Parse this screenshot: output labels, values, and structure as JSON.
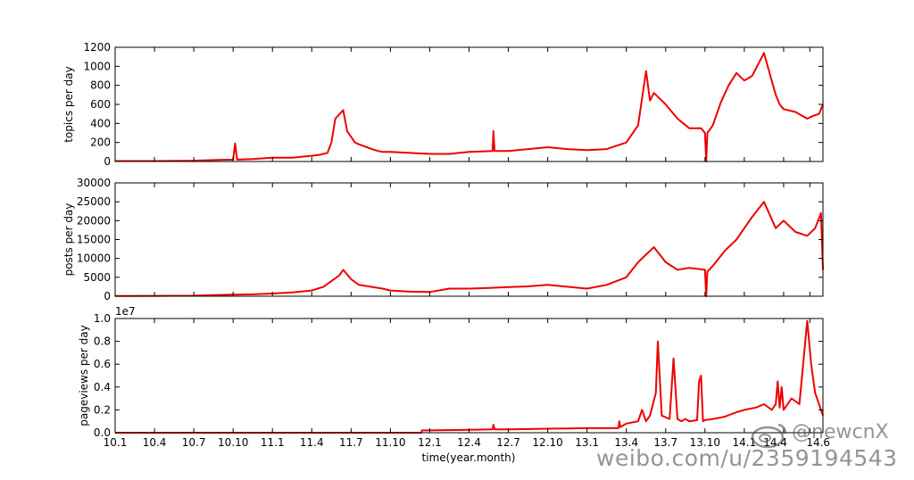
{
  "figure": {
    "xlabel": "time(year.month)",
    "x_ticks": [
      "10.1",
      "10.4",
      "10.7",
      "10.10",
      "11.1",
      "11.4",
      "11.7",
      "11.10",
      "12.1",
      "12.4",
      "12.7",
      "12.10",
      "13.1",
      "13.4",
      "13.7",
      "13.10",
      "14.1",
      "14.4",
      "14.6"
    ],
    "line_color": "#ee0000"
  },
  "watermark": {
    "handle": "@newcnX",
    "url": "weibo.com/u/2359194543",
    "logo_icon": "weibo-logo-icon"
  },
  "chart_data": [
    {
      "type": "line",
      "title": "",
      "ylabel": "topics per day",
      "ylim": [
        0,
        1200
      ],
      "yticks": [
        "0",
        "200",
        "400",
        "600",
        "800",
        "1000",
        "1200"
      ],
      "grid": false,
      "series": [
        {
          "x": [
            0,
            1.0,
            2.0,
            2.5,
            3.0,
            3.05,
            3.1,
            3.5,
            4.0,
            4.5,
            5.0,
            5.2,
            5.4,
            5.5,
            5.6,
            5.8,
            5.9,
            6.1,
            6.2,
            6.4,
            6.6,
            6.8,
            7.0,
            7.5,
            8.0,
            8.5,
            9.0,
            9.6,
            9.62,
            9.65,
            10.0,
            10.5,
            11.0,
            11.5,
            12.0,
            12.5,
            13.0,
            13.3,
            13.5,
            13.6,
            13.7,
            14.0,
            14.3,
            14.6,
            14.9,
            15.0,
            15.03,
            15.06,
            15.2,
            15.4,
            15.6,
            15.8,
            16.0,
            16.2,
            16.5,
            16.8,
            16.9,
            17.0,
            17.3,
            17.6,
            17.75,
            17.9,
            18.0
          ],
          "y": [
            5,
            5,
            8,
            15,
            20,
            190,
            20,
            25,
            40,
            40,
            60,
            70,
            90,
            200,
            450,
            540,
            320,
            200,
            180,
            150,
            120,
            100,
            100,
            90,
            80,
            80,
            100,
            110,
            320,
            110,
            110,
            130,
            150,
            130,
            120,
            130,
            200,
            380,
            950,
            640,
            720,
            600,
            450,
            350,
            350,
            300,
            0,
            300,
            380,
            620,
            800,
            930,
            850,
            900,
            1140,
            700,
            600,
            550,
            520,
            450,
            480,
            500,
            600
          ]
        }
      ]
    },
    {
      "type": "line",
      "title": "",
      "ylabel": "posts per day",
      "ylim": [
        0,
        30000
      ],
      "yticks": [
        "0",
        "5000",
        "10000",
        "15000",
        "20000",
        "25000",
        "30000"
      ],
      "grid": false,
      "series": [
        {
          "x": [
            0,
            1.0,
            2.0,
            2.5,
            3.0,
            3.5,
            4.0,
            4.5,
            5.0,
            5.3,
            5.5,
            5.7,
            5.8,
            6.0,
            6.2,
            6.5,
            6.8,
            7.0,
            7.5,
            8.0,
            8.5,
            9.0,
            9.5,
            10.0,
            10.5,
            11.0,
            11.5,
            12.0,
            12.5,
            13.0,
            13.3,
            13.5,
            13.7,
            14.0,
            14.3,
            14.6,
            15.0,
            15.03,
            15.06,
            15.2,
            15.5,
            15.8,
            16.0,
            16.2,
            16.5,
            16.8,
            17.0,
            17.3,
            17.6,
            17.8,
            17.95,
            18.0
          ],
          "y": [
            50,
            100,
            150,
            300,
            400,
            500,
            700,
            1000,
            1500,
            2500,
            4000,
            5500,
            7000,
            4500,
            3000,
            2500,
            2000,
            1500,
            1200,
            1100,
            2000,
            2000,
            2200,
            2400,
            2600,
            3000,
            2500,
            2000,
            3000,
            5000,
            9000,
            11000,
            13000,
            9000,
            7000,
            7500,
            7000,
            0,
            6500,
            8000,
            12000,
            15000,
            18000,
            21000,
            25000,
            18000,
            20000,
            17000,
            16000,
            18000,
            22000,
            7000
          ]
        }
      ]
    },
    {
      "type": "line",
      "title": "",
      "ylabel": "pageviews per day",
      "ylim": [
        0,
        10000000
      ],
      "yticks": [
        "0.0",
        "0.2",
        "0.4",
        "0.6",
        "0.8",
        "1.0"
      ],
      "scale_label": "1e7",
      "grid": false,
      "series": [
        {
          "x": [
            0,
            2.0,
            4.0,
            6.0,
            7.79,
            7.8,
            8.0,
            9.0,
            9.6,
            9.62,
            9.65,
            10.0,
            11.0,
            12.0,
            12.8,
            12.82,
            12.85,
            13.0,
            13.3,
            13.4,
            13.5,
            13.6,
            13.75,
            13.8,
            13.9,
            14.1,
            14.2,
            14.3,
            14.4,
            14.5,
            14.6,
            14.8,
            14.85,
            14.9,
            14.95,
            15.0,
            15.2,
            15.5,
            15.8,
            16.0,
            16.3,
            16.5,
            16.7,
            16.8,
            16.85,
            16.9,
            16.95,
            17.0,
            17.2,
            17.4,
            17.6,
            17.7,
            17.8,
            17.9,
            18.0
          ],
          "y": [
            0,
            0,
            0,
            0,
            0,
            200000,
            200000,
            250000,
            300000,
            700000,
            300000,
            300000,
            350000,
            400000,
            400000,
            1000000,
            500000,
            800000,
            1000000,
            2000000,
            1000000,
            1500000,
            3500000,
            8000000,
            1500000,
            1200000,
            6500000,
            1200000,
            1000000,
            1200000,
            1000000,
            1100000,
            4500000,
            5000000,
            1000000,
            1100000,
            1200000,
            1400000,
            1800000,
            2000000,
            2200000,
            2500000,
            2000000,
            2500000,
            4500000,
            2200000,
            4000000,
            2000000,
            3000000,
            2500000,
            9800000,
            6000000,
            3500000,
            2500000,
            1500000
          ]
        }
      ]
    }
  ]
}
